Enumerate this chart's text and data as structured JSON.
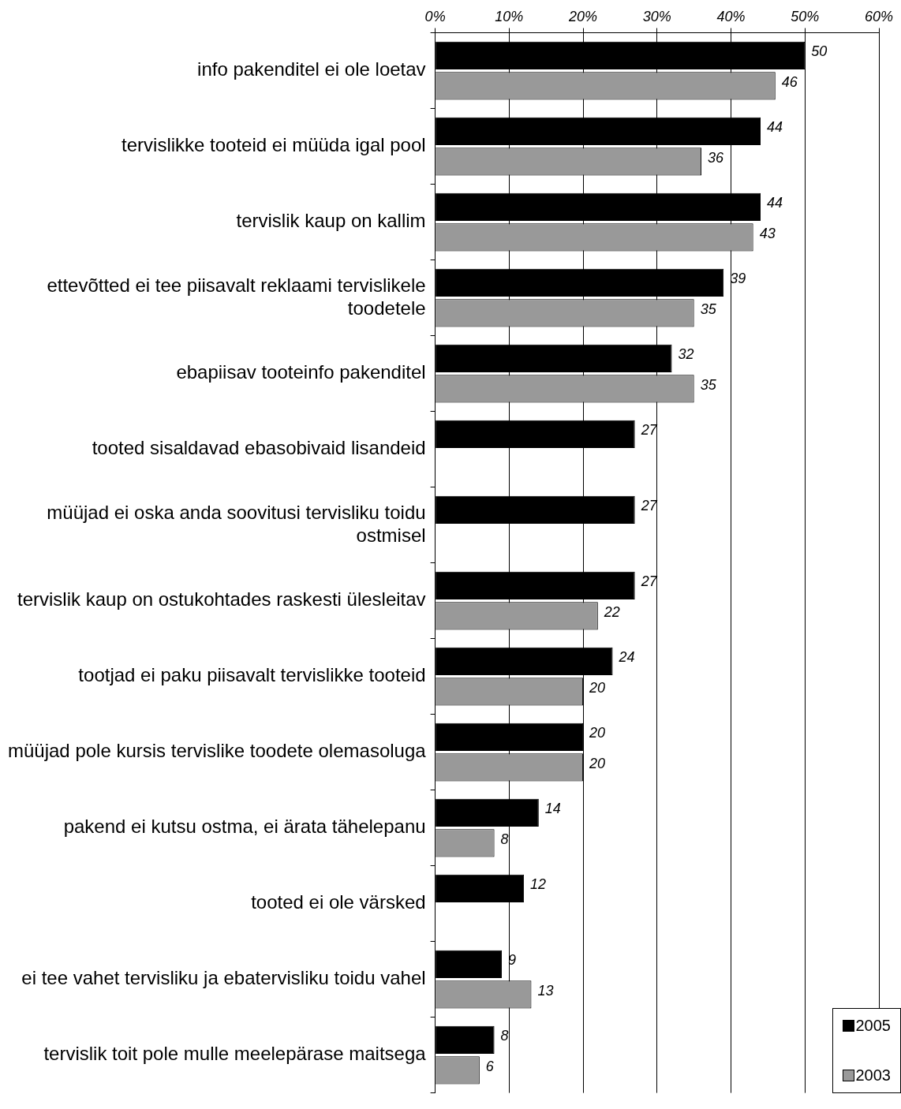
{
  "chart_data": {
    "type": "bar",
    "orientation": "horizontal",
    "categories": [
      "info pakenditel ei ole loetav",
      "tervislikke tooteid ei müüda igal pool",
      "tervislik kaup on kallim",
      "ettevõtted ei tee piisavalt reklaami tervislikele toodetele",
      "ebapiisav tooteinfo pakenditel",
      "tooted sisaldavad ebasobivaid lisandeid",
      "müüjad ei oska anda soovitusi tervisliku toidu ostmisel",
      "tervislik kaup on ostukohtades raskesti ülesleitav",
      "tootjad ei paku piisavalt tervislikke tooteid",
      "müüjad pole kursis tervislike toodete olemasoluga",
      "pakend ei kutsu ostma, ei ärata tähelepanu",
      "tooted ei ole värsked",
      "ei tee vahet tervisliku ja ebatervisliku toidu vahel",
      "tervislik toit pole mulle meelepärase maitsega"
    ],
    "series": [
      {
        "name": "2005",
        "color": "#000000",
        "values": [
          50,
          44,
          44,
          39,
          32,
          27,
          27,
          27,
          24,
          20,
          14,
          12,
          9,
          8
        ]
      },
      {
        "name": "2003",
        "color": "#999999",
        "values": [
          46,
          36,
          43,
          35,
          35,
          null,
          null,
          22,
          20,
          20,
          8,
          null,
          13,
          6
        ]
      }
    ],
    "xlim": [
      0,
      60
    ],
    "xticks": [
      {
        "value": 0,
        "label": "0%"
      },
      {
        "value": 10,
        "label": "10%"
      },
      {
        "value": 20,
        "label": "20%"
      },
      {
        "value": 30,
        "label": "30%"
      },
      {
        "value": 40,
        "label": "40%"
      },
      {
        "value": 50,
        "label": "50%"
      },
      {
        "value": 60,
        "label": "60%"
      }
    ],
    "grid": "x",
    "legend": "bottom right",
    "data_labels": true
  }
}
